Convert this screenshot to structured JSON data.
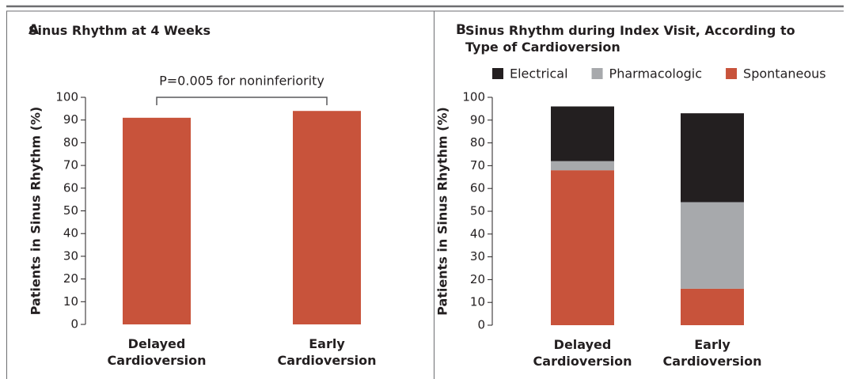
{
  "chart_data": [
    {
      "type": "bar",
      "panel": "A",
      "title": "Sinus Rhythm at 4 Weeks",
      "ylabel": "Patients in Sinus Rhythm (%)",
      "annotation": "P=0.005 for noninferiority",
      "categories": [
        "Delayed Cardioversion",
        "Early Cardioversion"
      ],
      "values": [
        91,
        94
      ],
      "color": "#c8533b",
      "ylim": [
        0,
        100
      ],
      "yticks": [
        0,
        10,
        20,
        30,
        40,
        50,
        60,
        70,
        80,
        90,
        100
      ]
    },
    {
      "type": "stacked-bar",
      "panel": "B",
      "title": "Sinus Rhythm during Index Visit, According to Type of Cardioversion",
      "ylabel": "Patients in Sinus Rhythm (%)",
      "categories": [
        "Delayed Cardioversion",
        "Early Cardioversion"
      ],
      "series": [
        {
          "name": "Electrical",
          "color": "#231f20",
          "values": [
            24,
            39
          ]
        },
        {
          "name": "Pharmacologic",
          "color": "#a7a9ac",
          "values": [
            4,
            38
          ]
        },
        {
          "name": "Spontaneous",
          "color": "#c8533b",
          "values": [
            68,
            16
          ]
        }
      ],
      "legend": "top",
      "ylim": [
        0,
        100
      ],
      "yticks": [
        0,
        10,
        20,
        30,
        40,
        50,
        60,
        70,
        80,
        90,
        100
      ]
    }
  ]
}
